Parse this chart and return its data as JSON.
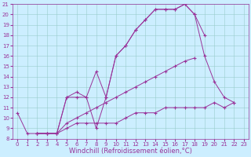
{
  "xlabel": "Windchill (Refroidissement éolien,°C)",
  "background_color": "#cceeff",
  "line_color": "#993399",
  "grid_color": "#99cccc",
  "xlim": [
    -0.5,
    23.5
  ],
  "ylim": [
    8,
    21
  ],
  "xticks": [
    0,
    1,
    2,
    3,
    4,
    5,
    6,
    7,
    8,
    9,
    10,
    11,
    12,
    13,
    14,
    15,
    16,
    17,
    18,
    19,
    20,
    21,
    22,
    23
  ],
  "yticks": [
    8,
    9,
    10,
    11,
    12,
    13,
    14,
    15,
    16,
    17,
    18,
    19,
    20,
    21
  ],
  "lines": [
    {
      "x": [
        0,
        1,
        2,
        3,
        4,
        5,
        6,
        7,
        8,
        9,
        10,
        11,
        12,
        13,
        14,
        15,
        16,
        17,
        18,
        19
      ],
      "y": [
        10.5,
        8.5,
        8.5,
        8.5,
        8.5,
        12.0,
        12.0,
        12.0,
        9.0,
        12.0,
        16.0,
        17.0,
        18.5,
        19.5,
        20.5,
        20.5,
        20.5,
        21.0,
        20.0,
        18.0
      ]
    },
    {
      "x": [
        2,
        3,
        4,
        5,
        6,
        7,
        8,
        9,
        10,
        11,
        12,
        13,
        14,
        15,
        16,
        17,
        18,
        19,
        20,
        21,
        22
      ],
      "y": [
        8.5,
        8.5,
        8.5,
        12.0,
        12.5,
        12.0,
        14.5,
        12.0,
        16.0,
        17.0,
        18.5,
        19.5,
        20.5,
        20.5,
        20.5,
        21.0,
        20.0,
        16.0,
        13.5,
        12.0,
        11.5
      ]
    },
    {
      "x": [
        2,
        3,
        4,
        5,
        6,
        7,
        8,
        9,
        10,
        11,
        12,
        13,
        14,
        15,
        16,
        17,
        18
      ],
      "y": [
        8.5,
        8.5,
        8.5,
        9.5,
        10.0,
        10.5,
        11.0,
        11.5,
        12.0,
        12.5,
        13.0,
        13.5,
        14.0,
        14.5,
        15.0,
        15.5,
        15.8
      ]
    },
    {
      "x": [
        2,
        3,
        4,
        5,
        6,
        7,
        8,
        9,
        10,
        11,
        12,
        13,
        14,
        15,
        16,
        17,
        18,
        19,
        20,
        21,
        22
      ],
      "y": [
        8.5,
        8.5,
        8.5,
        9.0,
        9.5,
        9.5,
        9.5,
        9.5,
        9.5,
        10.0,
        10.5,
        10.5,
        10.5,
        11.0,
        11.0,
        11.0,
        11.0,
        11.0,
        11.5,
        11.0,
        11.5
      ]
    }
  ],
  "tick_fontsize": 5.0,
  "xlabel_fontsize": 6.0,
  "linewidth": 0.7,
  "markersize": 2.5
}
